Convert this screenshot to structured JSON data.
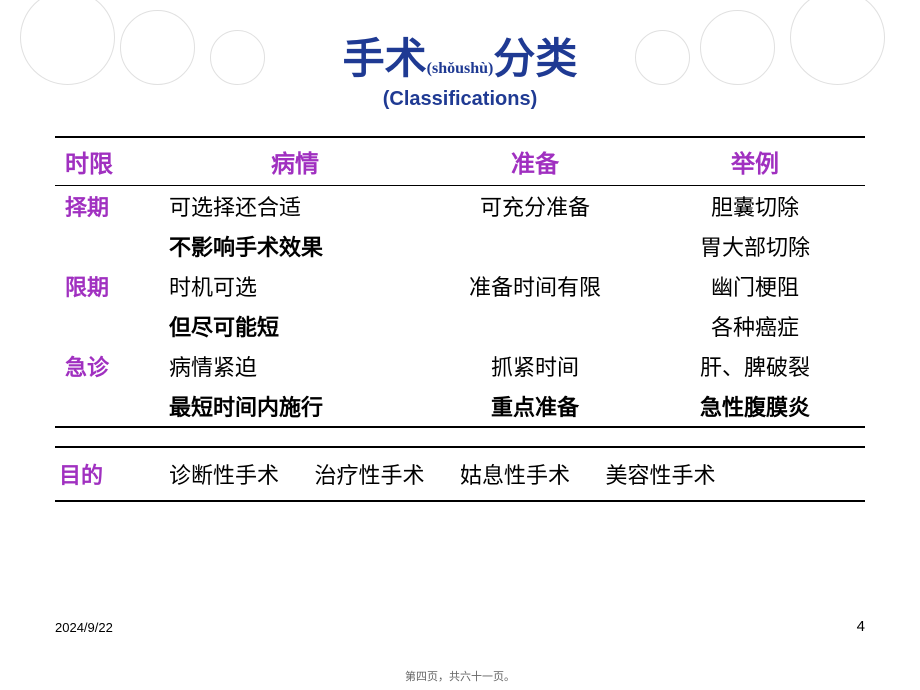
{
  "title": {
    "main1": "手术",
    "pinyin": "(shǒushù)",
    "main2": "分类",
    "sub": "(Classifications)"
  },
  "headers": [
    "时限",
    "病情",
    "准备",
    "举例"
  ],
  "rows": [
    {
      "label": "择期",
      "cond": "可选择还合适",
      "prep": "可充分准备",
      "ex": "胆囊切除",
      "bold": false
    },
    {
      "label": "",
      "cond": "不影响手术效果",
      "prep": "",
      "ex": "胃大部切除",
      "bold": true
    },
    {
      "label": "限期",
      "cond": "时机可选",
      "prep": "准备时间有限",
      "ex": "幽门梗阻",
      "bold": false
    },
    {
      "label": "",
      "cond": "但尽可能短",
      "prep": "",
      "ex": "各种癌症",
      "bold": true
    },
    {
      "label": "急诊",
      "cond": "病情紧迫",
      "prep": "抓紧时间",
      "ex": "肝、脾破裂",
      "bold": false
    },
    {
      "label": "",
      "cond": "最短时间内施行",
      "prep": "重点准备",
      "ex": "急性腹膜炎",
      "bold": true
    }
  ],
  "purpose": {
    "label": "目的",
    "items": [
      "诊断性手术",
      "治疗性手术",
      "姑息性手术",
      "美容性手术"
    ]
  },
  "footer": {
    "date": "2024/9/22",
    "pageNum": "4",
    "note": "第四页，共六十一页。"
  },
  "colors": {
    "title": "#1f3a93",
    "header": "#a030c0",
    "text": "#000000",
    "circle": "#e0e0e0"
  }
}
